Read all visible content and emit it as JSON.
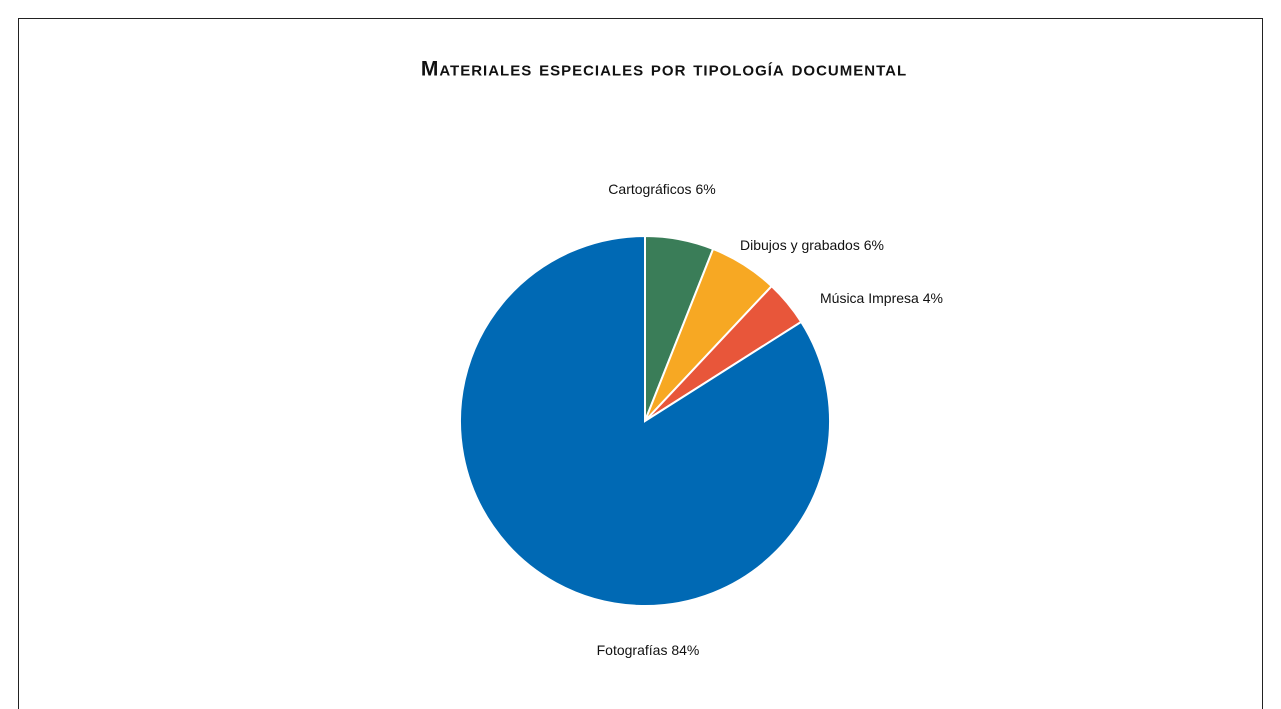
{
  "chart_data": {
    "type": "pie",
    "title": "Materiales especiales por tipología documental",
    "categories": [
      "Cartográficos",
      "Dibujos y grabados",
      "Música Impresa",
      "Fotografías"
    ],
    "values": [
      6,
      6,
      4,
      84
    ],
    "value_labels": [
      "6%",
      "6%",
      "4%",
      "84%"
    ],
    "colors": [
      "#3a7d58",
      "#f7a823",
      "#e8563a",
      "#0069b4"
    ]
  }
}
